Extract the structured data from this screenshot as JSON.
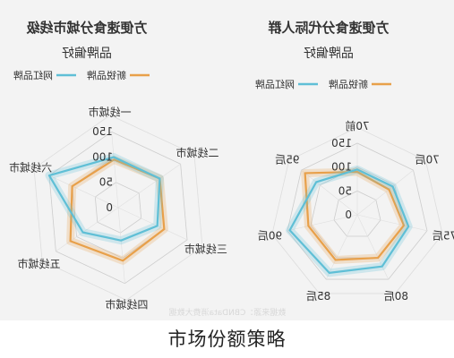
{
  "caption": "市场份额策略",
  "footer_source": "数据来源：CBNData消费大数据",
  "chart_data": [
    {
      "type": "radar",
      "title": "方便速食分城市线级",
      "subtitle": "品牌偏好",
      "axes": [
        "一线城市",
        "六线城市",
        "五线城市",
        "四线城市",
        "三线城市",
        "二线城市"
      ],
      "rlim": [
        0,
        150
      ],
      "ticks": [
        0,
        50,
        100,
        150
      ],
      "series": [
        {
          "name": "新锐品牌",
          "color": "#e8a04a",
          "values": [
            95,
            100,
            115,
            105,
            100,
            100
          ]
        },
        {
          "name": "网红品牌",
          "color": "#5fbfd6",
          "values": [
            100,
            150,
            85,
            65,
            85,
            100
          ]
        }
      ]
    },
    {
      "type": "radar",
      "title": "方便速食分代际人群",
      "subtitle": "品牌偏好",
      "axes": [
        "70前",
        "95后",
        "90后",
        "85后",
        "80后",
        "75后",
        "70后"
      ],
      "rlim": [
        0,
        150
      ],
      "ticks": [
        0,
        50,
        100,
        150
      ],
      "series": [
        {
          "name": "新锐品牌",
          "color": "#e8a04a",
          "values": [
            90,
            140,
            105,
            105,
            100,
            100,
            85
          ]
        },
        {
          "name": "网红品牌",
          "color": "#5fbfd6",
          "values": [
            95,
            110,
            145,
            135,
            120,
            110,
            95
          ]
        }
      ]
    }
  ]
}
